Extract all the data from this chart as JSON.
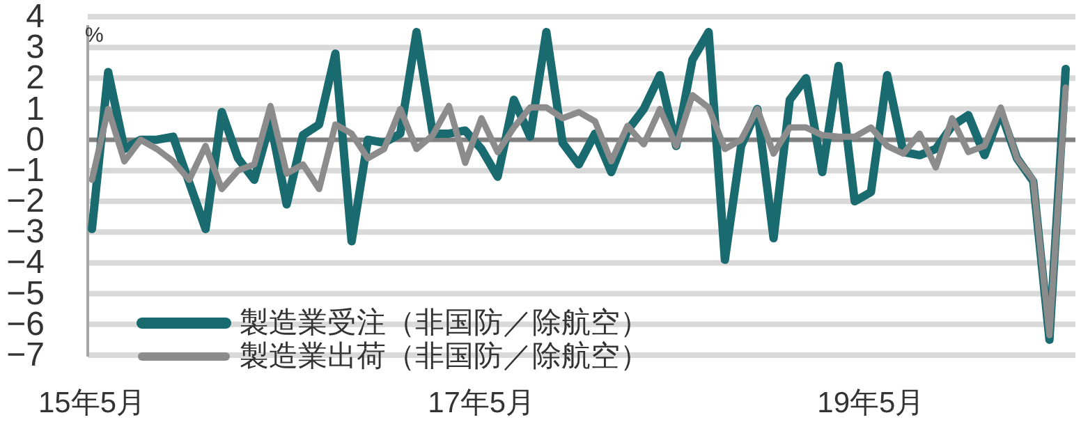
{
  "chart_data": {
    "type": "line",
    "annotations": [
      "%"
    ],
    "categories": [
      "15年5月",
      null,
      null,
      null,
      null,
      null,
      null,
      null,
      null,
      null,
      null,
      null,
      null,
      null,
      null,
      null,
      null,
      null,
      null,
      null,
      null,
      null,
      null,
      null,
      "17年5月",
      null,
      null,
      null,
      null,
      null,
      null,
      null,
      null,
      null,
      null,
      null,
      null,
      null,
      null,
      null,
      null,
      null,
      null,
      null,
      null,
      null,
      null,
      null,
      "19年5月",
      null,
      null,
      null,
      null,
      null,
      null,
      null,
      null,
      null,
      null,
      null,
      null
    ],
    "series": [
      {
        "name": "製造業受注（非国防／除航空）",
        "color": "#1a6b70",
        "values": [
          -2.9,
          2.2,
          -0.3,
          0,
          0,
          0.1,
          -1.4,
          -2.9,
          0.9,
          -0.6,
          -1.3,
          0.6,
          -2.1,
          0.15,
          0.5,
          2.8,
          -3.3,
          0,
          -0.1,
          0.2,
          3.5,
          0.2,
          0.2,
          0.3,
          -0.3,
          -1.2,
          1.3,
          0.1,
          3.5,
          -0.1,
          -0.8,
          0.2,
          -1.05,
          0.3,
          1.0,
          2.1,
          -0.2,
          2.6,
          3.5,
          -3.9,
          -0.2,
          1.0,
          -3.2,
          1.3,
          2.0,
          -1.05,
          2.4,
          -2.0,
          -1.7,
          2.1,
          -0.4,
          -0.5,
          -0.3,
          0.45,
          0.8,
          -0.5,
          0.9,
          -0.6,
          -1.35,
          -6.5,
          2.3
        ]
      },
      {
        "name": "製造業出荷（非国防／除航空）",
        "color": "#8c8c8c",
        "values": [
          -1.3,
          1.0,
          -0.7,
          0,
          -0.3,
          -0.7,
          -1.3,
          -0.2,
          -1.6,
          -1.0,
          -0.8,
          1.1,
          -1.1,
          -0.8,
          -1.6,
          0.5,
          0.2,
          -0.6,
          -0.3,
          1.0,
          -0.3,
          0.15,
          1.1,
          -0.75,
          0.7,
          -0.4,
          0.4,
          1.05,
          1.05,
          0.7,
          0.9,
          0.6,
          -0.7,
          0.45,
          -0.15,
          1.0,
          -0.2,
          1.45,
          1.05,
          -0.3,
          0,
          1.0,
          -0.45,
          0.4,
          0.4,
          0.15,
          0.1,
          0.1,
          0.4,
          -0.2,
          -0.45,
          0.2,
          -0.9,
          0.7,
          -0.4,
          -0.2,
          1.05,
          -0.6,
          -1.3,
          -6.35,
          1.7
        ]
      }
    ],
    "ylim": [
      -7,
      4
    ],
    "yticks": [
      {
        "value": -7,
        "label": "−7"
      },
      {
        "value": -6,
        "label": "−6"
      },
      {
        "value": -5,
        "label": "−5"
      },
      {
        "value": -4,
        "label": "−4"
      },
      {
        "value": -3,
        "label": "−3"
      },
      {
        "value": -2,
        "label": "−2"
      },
      {
        "value": -1,
        "label": "−1"
      },
      0,
      1,
      2,
      3,
      4
    ],
    "ref_lines": [
      {
        "axis": "y",
        "value": 0,
        "color": "#808080"
      }
    ],
    "grid": "y",
    "legend": "bottom left",
    "line_style": "solid",
    "marker": "none"
  }
}
